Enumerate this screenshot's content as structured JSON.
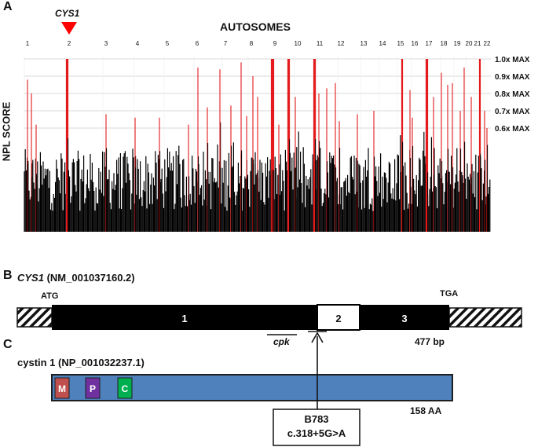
{
  "panel_a": {
    "letter": "A",
    "gene_marker": "CYS1",
    "title": "AUTOSOMES",
    "ylabel": "NPL SCORE",
    "chromosomes": [
      "1",
      "2",
      "3",
      "4",
      "5",
      "6",
      "7",
      "8",
      "9",
      "10",
      "11",
      "12",
      "13",
      "14",
      "15",
      "16",
      "17",
      "18",
      "19",
      "20",
      "21",
      "22"
    ],
    "threshold_labels": [
      "1.0x MAX",
      "0.9x MAX",
      "0.8x MAX",
      "0.7x MAX",
      "0.6x MAX"
    ],
    "colors": {
      "marker": "#ff0000",
      "above_threshold": "#e41a1c",
      "bars": "#000000",
      "grid": "#cccccc"
    }
  },
  "panel_b": {
    "letter": "B",
    "gene": "CYS1",
    "accession": "(NM_001037160.2)",
    "start_codon": "ATG",
    "stop_codon": "TGA",
    "exons": [
      "1",
      "2",
      "3"
    ],
    "mutant_label": "cpk",
    "length": "477 bp"
  },
  "panel_c": {
    "letter": "C",
    "protein": "cystin 1 (NP_001032237.1)",
    "domains": [
      {
        "label": "M",
        "color": "#c0504d"
      },
      {
        "label": "P",
        "color": "#7030a0"
      },
      {
        "label": "C",
        "color": "#00b050"
      }
    ],
    "protein_color": "#4f81bd",
    "length": "158 AA",
    "variant_id": "B783",
    "variant": "c.318+5G>A"
  }
}
